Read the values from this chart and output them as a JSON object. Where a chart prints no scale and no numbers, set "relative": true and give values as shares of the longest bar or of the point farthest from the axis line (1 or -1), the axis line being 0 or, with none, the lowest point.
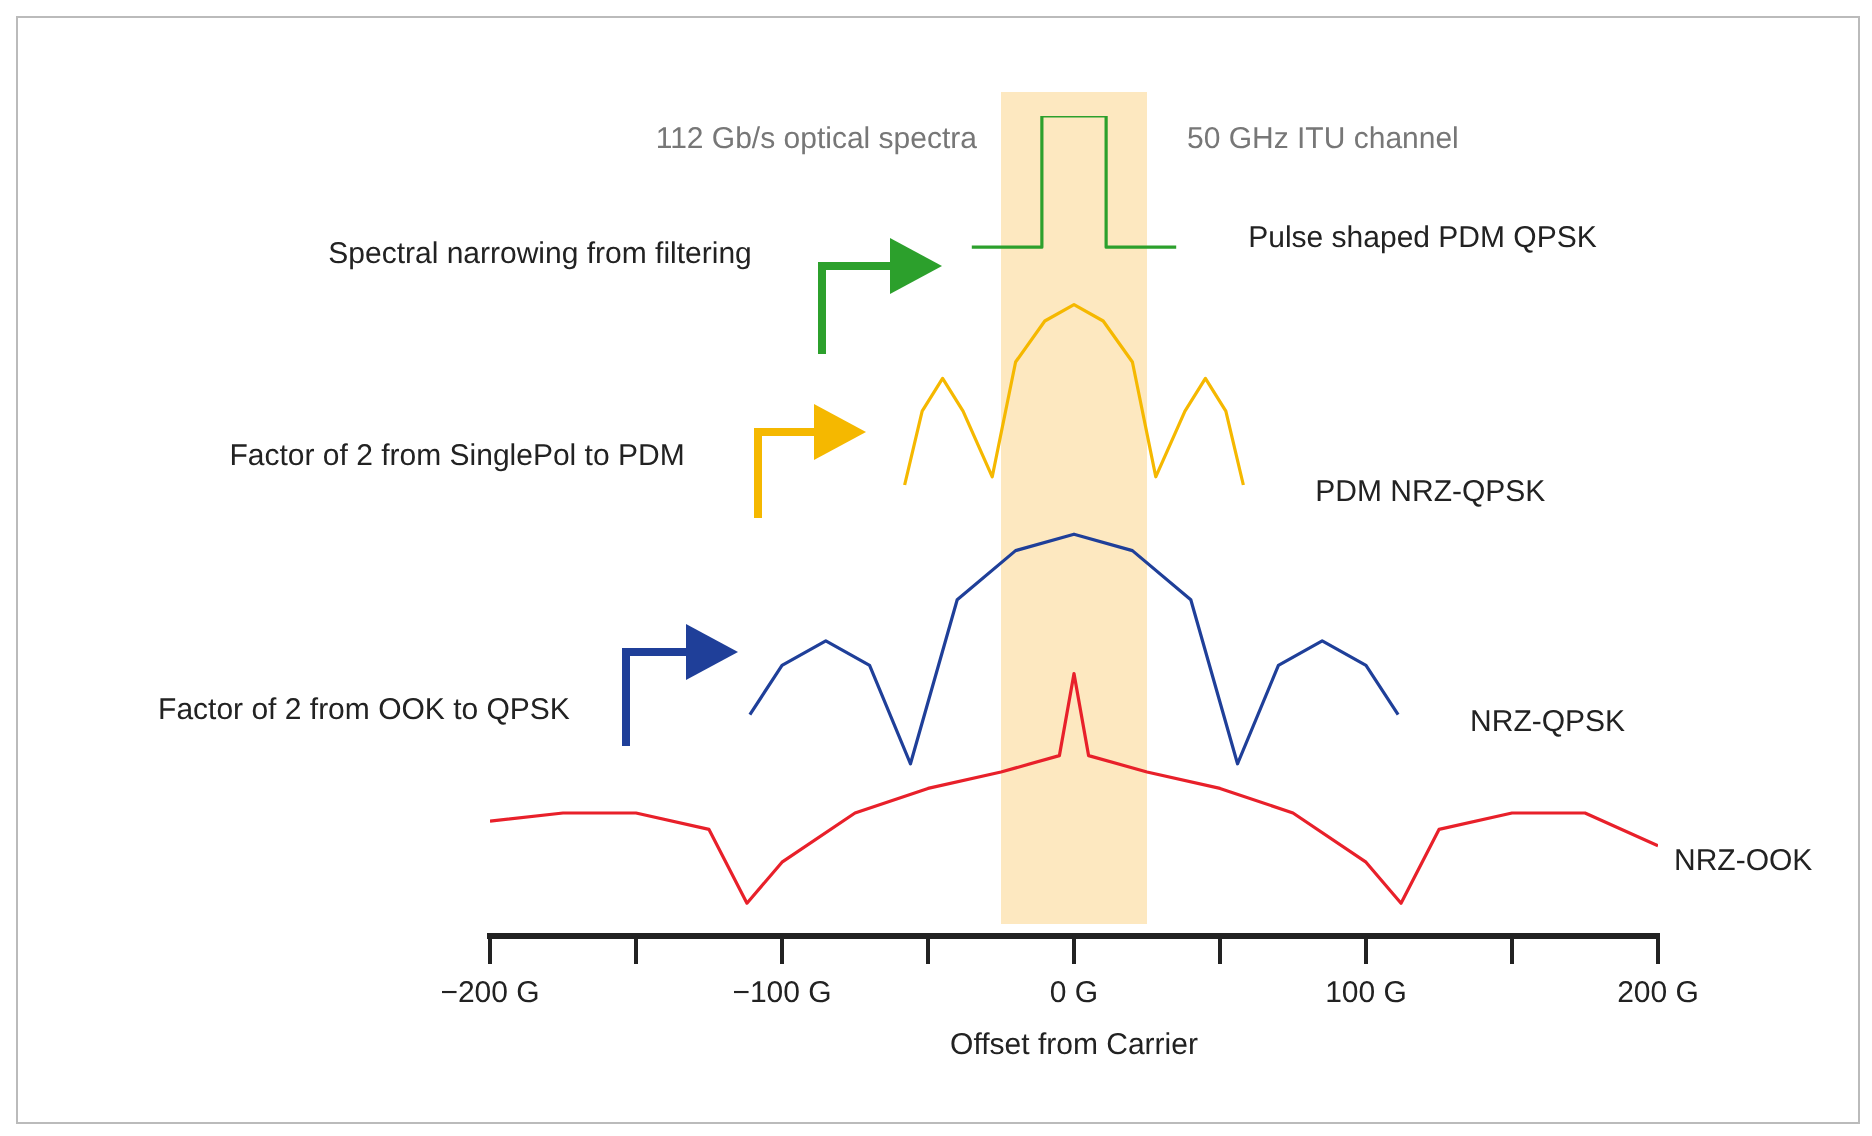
{
  "chart_data": {
    "type": "line",
    "title": "112 Gb/s optical spectra",
    "xlabel": "Offset from Carrier",
    "relative": true,
    "xlim": [
      -200,
      200
    ],
    "xticks": [
      {
        "value": -200,
        "label": "−200 G"
      },
      {
        "value": -150,
        "label": null
      },
      {
        "value": -100,
        "label": "−100 G"
      },
      {
        "value": -50,
        "label": null
      },
      {
        "value": 0,
        "label": "0 G"
      },
      {
        "value": 50,
        "label": null
      },
      {
        "value": 100,
        "label": "100 G"
      },
      {
        "value": 150,
        "label": null
      },
      {
        "value": 200,
        "label": "200 G"
      }
    ],
    "bands": [
      {
        "axis": "x",
        "from": -25,
        "to": 25,
        "label": "50 GHz ITU channel",
        "color": "#fde8c0"
      }
    ],
    "annotations": [
      "Spectral narrowing from filtering",
      "Factor of 2 from SinglePol to PDM",
      "Factor of 2 from OOK to QPSK"
    ],
    "grid": false,
    "legend": false,
    "marker": "none",
    "line_style": "solid",
    "series": [
      {
        "name": "Pulse shaped PDM QPSK",
        "color": "#2ca02c",
        "x": [
          -35,
          -11,
          -11,
          0,
          11,
          11,
          35
        ],
        "values": [
          0.84,
          0.84,
          1.0,
          1.0,
          1.0,
          0.84,
          0.84
        ]
      },
      {
        "name": "PDM NRZ-QPSK",
        "color": "#f5b800",
        "x": [
          -58,
          -52,
          -45,
          -38,
          -28,
          -20,
          -10,
          0,
          10,
          20,
          28,
          38,
          45,
          52,
          58
        ],
        "values": [
          0.55,
          0.64,
          0.68,
          0.64,
          0.56,
          0.7,
          0.75,
          0.77,
          0.75,
          0.7,
          0.56,
          0.64,
          0.68,
          0.64,
          0.55
        ]
      },
      {
        "name": "NRZ-QPSK",
        "color": "#1f3f99",
        "x": [
          -111,
          -100,
          -85,
          -70,
          -56,
          -40,
          -20,
          0,
          20,
          40,
          56,
          70,
          85,
          100,
          111
        ],
        "values": [
          0.27,
          0.33,
          0.36,
          0.33,
          0.21,
          0.41,
          0.47,
          0.49,
          0.47,
          0.41,
          0.21,
          0.33,
          0.36,
          0.33,
          0.27
        ]
      },
      {
        "name": "NRZ-OOK",
        "color": "#e8202a",
        "x": [
          -200,
          -175,
          -150,
          -125,
          -112,
          -100,
          -75,
          -50,
          -25,
          -5,
          0,
          5,
          25,
          50,
          75,
          100,
          112,
          125,
          150,
          175,
          200
        ],
        "values": [
          0.14,
          0.15,
          0.15,
          0.13,
          0.04,
          0.09,
          0.15,
          0.18,
          0.2,
          0.22,
          0.32,
          0.22,
          0.2,
          0.18,
          0.15,
          0.09,
          0.04,
          0.13,
          0.15,
          0.15,
          0.11
        ]
      }
    ]
  }
}
